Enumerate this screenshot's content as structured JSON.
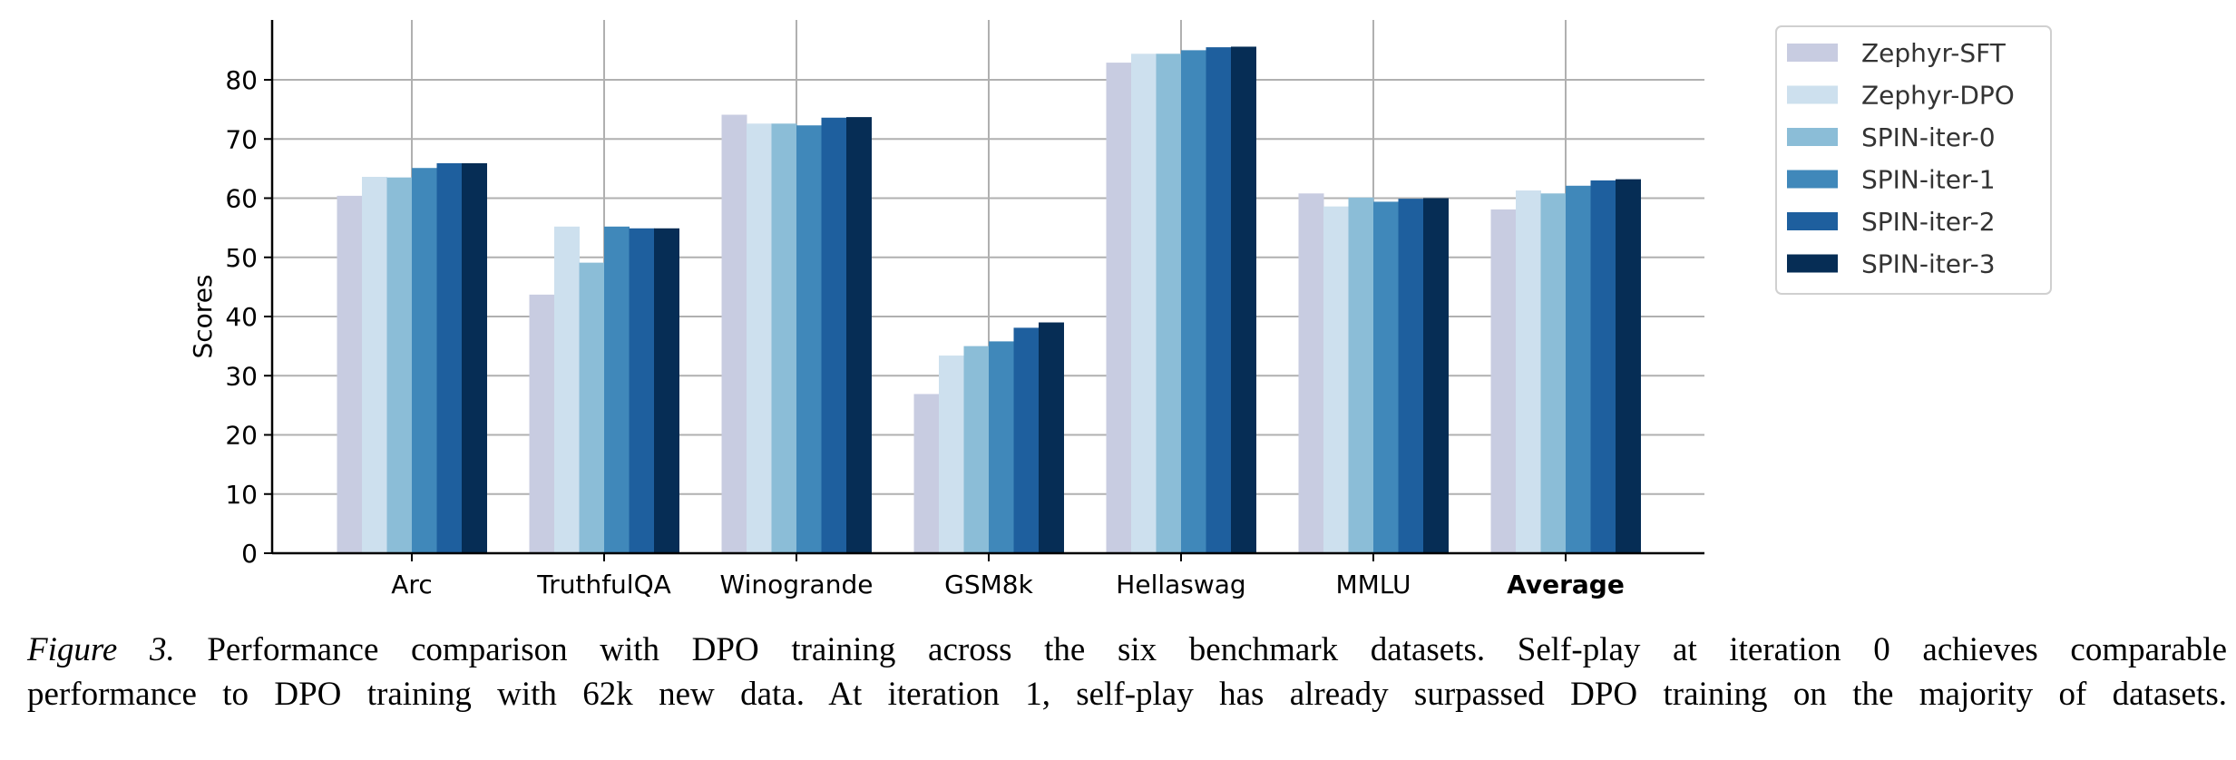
{
  "chart_data": {
    "type": "bar",
    "title": "",
    "xlabel": "",
    "ylabel": "Scores",
    "ylim": [
      0,
      89
    ],
    "yticks": [
      0,
      10,
      20,
      30,
      40,
      50,
      60,
      70,
      80
    ],
    "grid": true,
    "legend_position": "outside-top-right",
    "categories": [
      "Arc",
      "TruthfulQA",
      "Winogrande",
      "GSM8k",
      "Hellaswag",
      "MMLU",
      "Average"
    ],
    "bold_categories": [
      "Average"
    ],
    "series": [
      {
        "name": "Zephyr-SFT",
        "color": "#c8cce1",
        "values": [
          60.4,
          43.7,
          74.1,
          26.9,
          82.9,
          60.8,
          58.1
        ]
      },
      {
        "name": "Zephyr-DPO",
        "color": "#cde0ee",
        "values": [
          63.6,
          55.2,
          72.6,
          33.4,
          84.4,
          58.6,
          61.3
        ]
      },
      {
        "name": "SPIN-iter-0",
        "color": "#8bbdd7",
        "values": [
          63.5,
          49.1,
          72.6,
          35.0,
          84.4,
          60.1,
          60.8
        ]
      },
      {
        "name": "SPIN-iter-1",
        "color": "#4088ba",
        "values": [
          65.1,
          55.2,
          72.3,
          35.8,
          85.0,
          59.4,
          62.1
        ]
      },
      {
        "name": "SPIN-iter-2",
        "color": "#1e5f9e",
        "values": [
          65.9,
          54.9,
          73.6,
          38.1,
          85.5,
          59.9,
          63.0
        ]
      },
      {
        "name": "SPIN-iter-3",
        "color": "#062d55",
        "values": [
          65.9,
          54.9,
          73.7,
          39.0,
          85.6,
          60.0,
          63.2
        ]
      }
    ]
  },
  "caption": {
    "label": "Figure 3.",
    "line1": " Performance comparison with DPO training across the six benchmark datasets. Self-play at iteration 0 achieves comparable",
    "line2": "performance to DPO training with 62k new data. At iteration 1, self-play has already surpassed DPO training on the majority of datasets."
  }
}
